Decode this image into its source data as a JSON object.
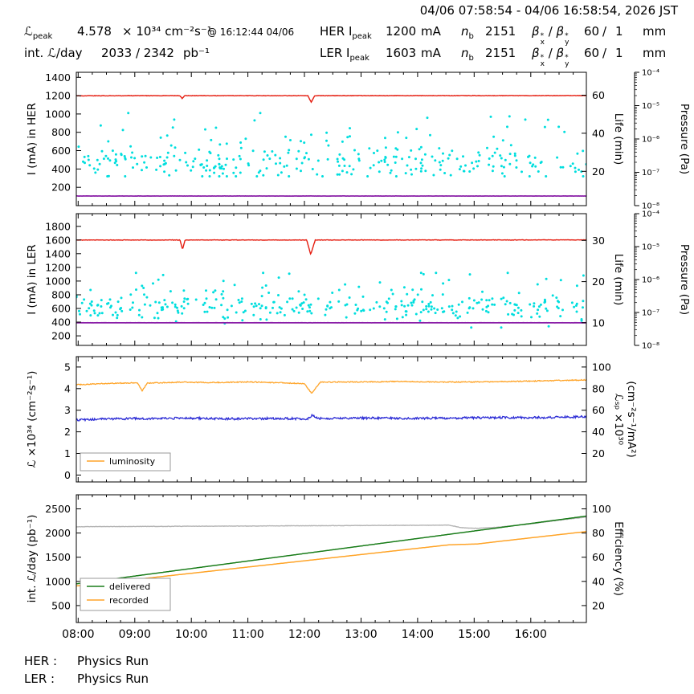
{
  "header": {
    "datetime_range": "04/06 07:58:54 - 04/06 16:58:54, 2026 JST",
    "lpeak": {
      "sym": "ℒ",
      "sub": "peak",
      "value": "4.578",
      "units": "× 10³⁴ cm⁻²s⁻¹",
      "at": "@ 16:12:44 04/06"
    },
    "intlum": {
      "label": "int. ℒ/day",
      "value": "2033 / 2342",
      "units": "pb⁻¹"
    },
    "her": {
      "prefix": "HER I",
      "sub": "peak",
      "value": "1200",
      "units": "mA"
    },
    "ler": {
      "prefix": "LER I",
      "sub": "peak",
      "value": "1603",
      "units": "mA"
    },
    "nb": {
      "sym": "n",
      "sub": "b",
      "value": "2151"
    },
    "beta": {
      "b": "β",
      "star": "*",
      "x": "x",
      "y": "y",
      "slash": "/",
      "vx": "60",
      "vslash": "/",
      "vy": "1",
      "units": "mm"
    }
  },
  "footer": {
    "her_label": "HER :",
    "her_status": "Physics Run",
    "ler_label": "LER :",
    "ler_status": "Physics Run"
  },
  "xaxis": {
    "lim": [
      7.967,
      16.983
    ],
    "ticks": [
      8,
      9,
      10,
      11,
      12,
      13,
      14,
      15,
      16
    ],
    "labels": [
      "08:00",
      "09:00",
      "10:00",
      "11:00",
      "12:00",
      "13:00",
      "14:00",
      "15:00",
      "16:00"
    ]
  },
  "chart_data": [
    {
      "type": "line",
      "title": "HER beam current, lifetime and pressure",
      "ylabel": "I (mA) in HER",
      "ylim": [
        0,
        1455
      ],
      "yticks": [
        200,
        400,
        600,
        800,
        1000,
        1200,
        1400
      ],
      "right": {
        "labels": [
          "Life (min)"
        ],
        "lim": [
          2,
          72
        ],
        "ticks": [
          20,
          40,
          60
        ]
      },
      "pressure": {
        "label": "Pressure (Pa)",
        "decades": [
          "10⁻⁴",
          "10⁻⁵",
          "10⁻⁶",
          "10⁻⁷",
          "10⁻⁸"
        ]
      },
      "series": [
        {
          "name": "her-lifetime-scatter",
          "type": "scatter",
          "color": "#00dede",
          "seed": 101,
          "count": 270,
          "mean": 465,
          "sd": 85,
          "min": 320,
          "max": 760,
          "size": 1.5
        },
        {
          "name": "her-lifetime-scatter-high",
          "type": "scatter",
          "color": "#00dede",
          "seed": 102,
          "count": 55,
          "mean": 770,
          "sd": 120,
          "min": 540,
          "max": 1010,
          "size": 1.5
        },
        {
          "name": "her-injection",
          "type": "line",
          "color": "#8b20a8",
          "width": 1.8,
          "noise": 0.8,
          "seed": 104,
          "points": [
            [
              7.967,
              105
            ],
            [
              16.983,
              105
            ]
          ]
        },
        {
          "name": "her-current",
          "type": "line",
          "color": "#e51c0f",
          "width": 1.4,
          "noise": 2.5,
          "seed": 103,
          "points": [
            [
              7.967,
              1199
            ],
            [
              9.8,
              1200
            ],
            [
              9.84,
              1170
            ],
            [
              9.88,
              1200
            ],
            [
              12.06,
              1200
            ],
            [
              12.12,
              1128
            ],
            [
              12.18,
              1200
            ],
            [
              16.983,
              1201
            ]
          ]
        }
      ]
    },
    {
      "type": "line",
      "title": "LER beam current, lifetime and pressure",
      "ylabel": "I (mA) in LER",
      "ylim": [
        60,
        1985
      ],
      "yticks": [
        200,
        400,
        600,
        800,
        1000,
        1200,
        1400,
        1600,
        1800
      ],
      "right": {
        "labels": [
          "Life (min)"
        ],
        "lim": [
          4.5,
          36.5
        ],
        "ticks": [
          10,
          20,
          30
        ]
      },
      "pressure": {
        "label": "Pressure (Pa)",
        "decades": [
          "10⁻⁴",
          "10⁻⁵",
          "10⁻⁶",
          "10⁻⁷",
          "10⁻⁸"
        ]
      },
      "series": [
        {
          "name": "ler-lifetime-scatter",
          "type": "scatter",
          "color": "#00dede",
          "seed": 201,
          "count": 280,
          "mean": 625,
          "sd": 90,
          "min": 400,
          "max": 860,
          "size": 1.5
        },
        {
          "name": "ler-lifetime-scatter-high",
          "type": "scatter",
          "color": "#00dede",
          "seed": 202,
          "count": 55,
          "mean": 880,
          "sd": 140,
          "min": 600,
          "max": 1120,
          "size": 1.5
        },
        {
          "name": "ler-lifetime-scatter-low",
          "type": "scatter",
          "color": "#00dede",
          "seed": 203,
          "count": 6,
          "mean": 360,
          "sd": 30,
          "min": 320,
          "max": 420,
          "size": 1.5
        },
        {
          "name": "ler-injection",
          "type": "line",
          "color": "#8b20a8",
          "width": 1.8,
          "noise": 0.8,
          "seed": 205,
          "points": [
            [
              7.967,
              390
            ],
            [
              16.983,
              390
            ]
          ]
        },
        {
          "name": "ler-current",
          "type": "line",
          "color": "#e51c0f",
          "width": 1.4,
          "noise": 3,
          "seed": 204,
          "points": [
            [
              7.967,
              1600
            ],
            [
              9.8,
              1600
            ],
            [
              9.845,
              1462
            ],
            [
              9.89,
              1600
            ],
            [
              12.04,
              1600
            ],
            [
              12.11,
              1388
            ],
            [
              12.19,
              1600
            ],
            [
              16.983,
              1601
            ]
          ]
        }
      ]
    },
    {
      "type": "line",
      "title": "Luminosity and specific luminosity",
      "ylabel": "ℒ ×10³⁴ (cm⁻²s⁻¹)",
      "ylim": [
        -0.32,
        5.48
      ],
      "yticks": [
        0,
        1,
        2,
        3,
        4,
        5
      ],
      "right": {
        "labels": [
          "ℒₛₚ ×10³⁰",
          "(cm⁻²s⁻¹/mA²)"
        ],
        "lim": [
          -6.4,
          109.6
        ],
        "ticks": [
          20,
          40,
          60,
          80,
          100
        ]
      },
      "legend": {
        "items": [
          {
            "label": "luminosity",
            "color": "#ffa428"
          }
        ]
      },
      "series": [
        {
          "name": "specific-luminosity",
          "type": "line",
          "color": "#2b2bd5",
          "width": 1.3,
          "noise": 0.05,
          "seed": 302,
          "points": [
            [
              7.967,
              2.55
            ],
            [
              8.6,
              2.6
            ],
            [
              9.3,
              2.62
            ],
            [
              10,
              2.63
            ],
            [
              10.8,
              2.6
            ],
            [
              11.5,
              2.62
            ],
            [
              12.05,
              2.6
            ],
            [
              12.14,
              2.78
            ],
            [
              12.25,
              2.62
            ],
            [
              13,
              2.64
            ],
            [
              13.8,
              2.62
            ],
            [
              14.6,
              2.64
            ],
            [
              15.4,
              2.66
            ],
            [
              16.2,
              2.66
            ],
            [
              16.983,
              2.7
            ]
          ]
        },
        {
          "name": "luminosity",
          "type": "line",
          "color": "#ffa428",
          "width": 1.3,
          "noise": 0.022,
          "seed": 301,
          "points": [
            [
              7.967,
              4.18
            ],
            [
              8.5,
              4.24
            ],
            [
              9.05,
              4.27
            ],
            [
              9.13,
              3.9
            ],
            [
              9.22,
              4.25
            ],
            [
              9.8,
              4.3
            ],
            [
              10.4,
              4.28
            ],
            [
              11,
              4.31
            ],
            [
              11.6,
              4.27
            ],
            [
              12.0,
              4.22
            ],
            [
              12.13,
              3.77
            ],
            [
              12.28,
              4.3
            ],
            [
              13,
              4.31
            ],
            [
              13.7,
              4.33
            ],
            [
              14.4,
              4.3
            ],
            [
              15,
              4.31
            ],
            [
              15.6,
              4.33
            ],
            [
              16.2,
              4.36
            ],
            [
              16.983,
              4.4
            ]
          ]
        }
      ]
    },
    {
      "type": "line",
      "title": "Integrated luminosity and efficiency",
      "ylabel": "int. ℒ/day (pb⁻¹)",
      "ylim": [
        150,
        2790
      ],
      "yticks": [
        500,
        1000,
        1500,
        2000,
        2500
      ],
      "right": {
        "labels": [
          "Efficiency (%)"
        ],
        "lim": [
          6,
          111.6
        ],
        "ticks": [
          20,
          40,
          60,
          80,
          100
        ]
      },
      "legend": {
        "items": [
          {
            "label": "delivered",
            "color": "#1a7d1a"
          },
          {
            "label": "recorded",
            "color": "#ffa428"
          }
        ]
      },
      "show_xlabels": true,
      "series": [
        {
          "name": "efficiency",
          "type": "line",
          "axis": "right",
          "color": "#b3b3b3",
          "width": 1.4,
          "noise": 0.15,
          "seed": 403,
          "points": [
            [
              7.967,
              85.2
            ],
            [
              9,
              85.4
            ],
            [
              10,
              85.6
            ],
            [
              11,
              85.8
            ],
            [
              12,
              86.0
            ],
            [
              13,
              86.2
            ],
            [
              14,
              86.4
            ],
            [
              14.55,
              86.5
            ],
            [
              14.78,
              84.4
            ],
            [
              15.05,
              83.8
            ],
            [
              15.45,
              84.9
            ],
            [
              16,
              87.6
            ],
            [
              16.5,
              90.6
            ],
            [
              16.983,
              93.2
            ]
          ]
        },
        {
          "name": "delivered",
          "type": "line",
          "color": "#1a7d1a",
          "width": 1.5,
          "noise": 0,
          "seed": 401,
          "points": [
            [
              7.967,
              950
            ],
            [
              16.983,
              2350
            ]
          ]
        },
        {
          "name": "recorded",
          "type": "line",
          "color": "#ffa428",
          "width": 1.5,
          "noise": 0,
          "seed": 402,
          "points": [
            [
              7.967,
              905
            ],
            [
              14.55,
              1755
            ],
            [
              14.75,
              1763
            ],
            [
              15.05,
              1773
            ],
            [
              15.3,
              1808
            ],
            [
              16.983,
              2030
            ]
          ]
        }
      ]
    }
  ]
}
